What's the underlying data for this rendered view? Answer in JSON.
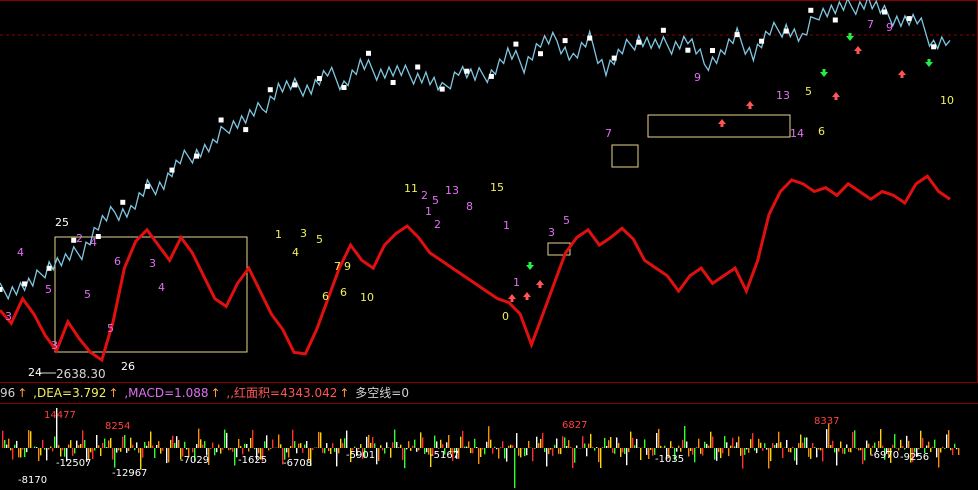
{
  "colors": {
    "background": "#000000",
    "frame": "#8a0000",
    "price": "#7fc6e0",
    "bull_line": "#e01010",
    "box": "#e8d58a",
    "label_pink": "#e070f0",
    "label_yellow": "#f0f060",
    "label_white": "#ffffff",
    "arrow_up": "#ff5555",
    "arrow_down": "#22ee44"
  },
  "chart_data": [
    {
      "type": "line",
      "series": [
        {
          "values": [
            2705,
            2688,
            2720,
            2700,
            2672,
            2652,
            2690,
            2668,
            2650,
            2640,
            2690,
            2760,
            2795,
            2810,
            2790,
            2770,
            2800,
            2780,
            2750,
            2720,
            2710,
            2740,
            2760,
            2730,
            2700,
            2680,
            2650,
            2648,
            2680,
            2720,
            2760,
            2790,
            2770,
            2760,
            2790,
            2805,
            2815,
            2800,
            2780,
            2770,
            2760,
            2750,
            2740,
            2730,
            2720,
            2715,
            2700,
            2660,
            2700,
            2740,
            2780,
            2800,
            2810,
            2790,
            2800,
            2812,
            2798,
            2770,
            2760,
            2750,
            2730,
            2750,
            2760,
            2740,
            2750,
            2760,
            2730,
            2770,
            2830,
            2860,
            2875,
            2870,
            2860,
            2865,
            2855,
            2870,
            2860,
            2850,
            2860,
            2855,
            2845,
            2870,
            2880,
            2860,
            2850
          ]
        },
        {
          "values": [
            2720,
            2732,
            2745,
            2758,
            2770,
            2790,
            2810,
            2835,
            2845,
            2860,
            2875,
            2890,
            2910,
            2925,
            2940,
            2955,
            2975,
            2990,
            2998,
            3005,
            3010,
            3005,
            3015,
            3015,
            3022,
            3005,
            3010,
            2998,
            3015,
            3010,
            3025,
            3035,
            3030,
            3045,
            3055,
            3040,
            3050,
            3020,
            3050,
            3055,
            3052,
            3060,
            3055,
            3030,
            3030,
            3060,
            3045,
            3060,
            3075,
            3065,
            3090,
            3100,
            3110,
            3105,
            3095,
            3075,
            3080,
            3060,
            3050
          ]
        }
      ],
      "annotations": [
        "25",
        "4",
        "2",
        "4",
        "5",
        "5",
        "3",
        "6",
        "3",
        "4",
        "5",
        "3",
        "24",
        "26",
        "2638.30",
        "1",
        "3",
        "4",
        "5",
        "7",
        "9",
        "6",
        "6",
        "10",
        "11",
        "2",
        "5",
        "13",
        "15",
        "1",
        "2",
        "8",
        "1",
        "0",
        "1",
        "3",
        "5",
        "7",
        "9",
        "13",
        "5",
        "14",
        "6",
        "10",
        "7",
        "9"
      ],
      "ylim": [
        2610,
        3110
      ]
    },
    {
      "type": "bar",
      "annotations": [
        "14477",
        "8254",
        "-12507",
        "-12967",
        "-7029",
        "-1625",
        "-6708",
        "-5901",
        "-5167",
        "6827",
        "-1035",
        "-8170",
        "8337",
        "-6970",
        "-9256"
      ]
    }
  ],
  "indicator_bar": {
    "prefix": "96",
    "dea": ",DEA=3.792",
    "macd": ",MACD=1.088",
    "red_area": ",,红面积=4343.042",
    "long_short": "多空线=0"
  },
  "arrow_up_glyph": "↑"
}
